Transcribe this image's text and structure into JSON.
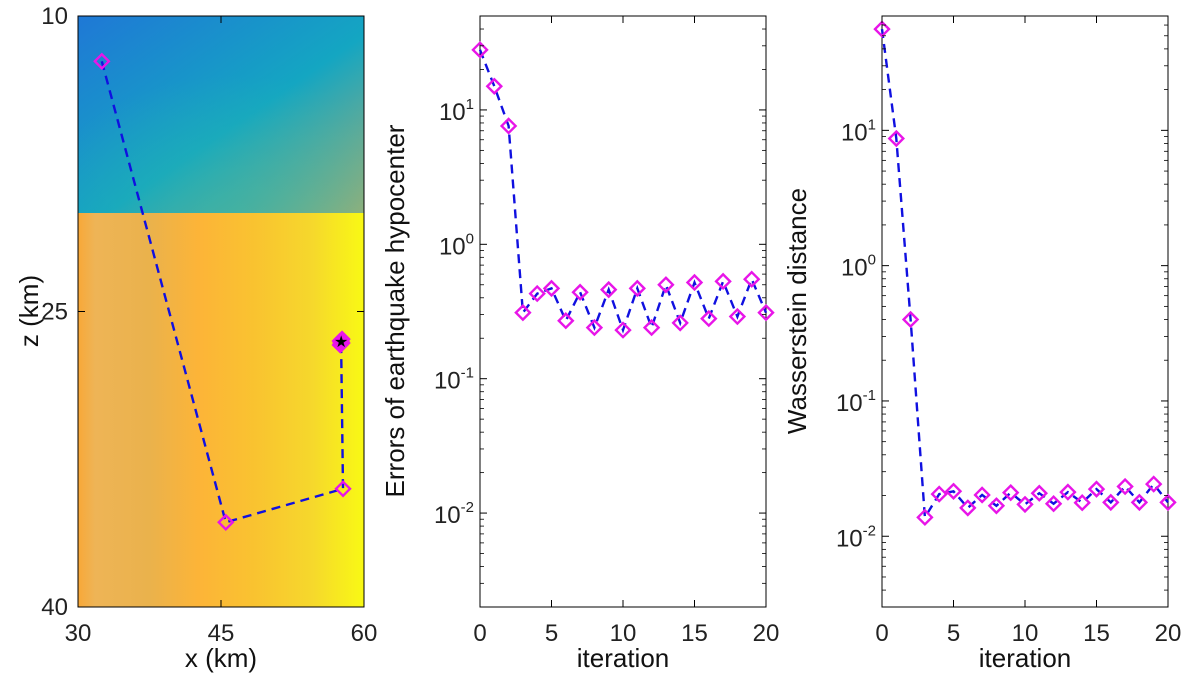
{
  "colors": {
    "line": "#1010e0",
    "marker": "#e815e8",
    "axis": "#000000",
    "final_marker": "#000000"
  },
  "chart_data": [
    {
      "type": "line",
      "xlabel": "x (km)",
      "ylabel": "z (km)",
      "xlim": [
        30,
        60
      ],
      "ylim": [
        10,
        40
      ],
      "y_reversed": true,
      "xticks": [
        "30",
        "45",
        "60"
      ],
      "yticks": [
        "10",
        "25",
        "40"
      ],
      "grid": false,
      "background": {
        "type": "velocity-model",
        "layer_boundary_z": 20,
        "upper_layer": "blue-teal gradient",
        "lower_layer": "orange-yellow gradient"
      },
      "series": [
        {
          "x": [
            32.5,
            45.5,
            57.8,
            57.6,
            57.6,
            57.5,
            57.7,
            57.6,
            57.5,
            57.7,
            57.6,
            57.6
          ],
          "z": [
            12.3,
            35.7,
            34.0,
            26.6,
            26.5,
            26.7,
            26.4,
            26.6,
            26.5,
            26.6,
            26.5,
            26.6
          ],
          "marker": "diamond",
          "linestyle": "dashed"
        }
      ],
      "final_point": {
        "x": 57.6,
        "z": 26.5
      }
    },
    {
      "type": "line",
      "xlabel": "iteration",
      "ylabel": "Errors of earthquake hypocenter",
      "yscale": "log",
      "xlim": [
        0,
        20
      ],
      "ylim": [
        0.002,
        50
      ],
      "xticks": [
        "0",
        "5",
        "10",
        "15",
        "20"
      ],
      "yticks": [
        {
          "base": "10",
          "exp": "1"
        },
        {
          "base": "10",
          "exp": "0"
        },
        {
          "base": "10",
          "exp": "-1"
        },
        {
          "base": "10",
          "exp": "-2"
        }
      ],
      "grid": false,
      "series": [
        {
          "x": [
            0,
            1,
            2,
            3,
            4,
            5,
            6,
            7,
            8,
            9,
            10,
            11,
            12,
            13,
            14,
            15,
            16,
            17,
            18,
            19,
            20
          ],
          "y": [
            28,
            15,
            7.6,
            0.31,
            0.43,
            0.47,
            0.27,
            0.44,
            0.24,
            0.46,
            0.23,
            0.47,
            0.24,
            0.5,
            0.26,
            0.52,
            0.28,
            0.53,
            0.29,
            0.55,
            0.31
          ],
          "marker": "diamond",
          "linestyle": "dashed"
        }
      ]
    },
    {
      "type": "line",
      "xlabel": "iteration",
      "ylabel": "Wasserstein distance",
      "yscale": "log",
      "xlim": [
        0,
        20
      ],
      "ylim": [
        0.003,
        70
      ],
      "xticks": [
        "0",
        "5",
        "10",
        "15",
        "20"
      ],
      "yticks": [
        {
          "base": "10",
          "exp": "1"
        },
        {
          "base": "10",
          "exp": "0"
        },
        {
          "base": "10",
          "exp": "-1"
        },
        {
          "base": "10",
          "exp": "-2"
        }
      ],
      "grid": false,
      "series": [
        {
          "x": [
            0,
            1,
            2,
            3,
            4,
            5,
            6,
            7,
            8,
            9,
            10,
            11,
            12,
            13,
            14,
            15,
            16,
            17,
            18,
            19,
            20
          ],
          "y": [
            56,
            8.7,
            0.4,
            0.0138,
            0.0205,
            0.0215,
            0.0162,
            0.0202,
            0.0168,
            0.021,
            0.0172,
            0.0208,
            0.0174,
            0.0212,
            0.0177,
            0.0223,
            0.0178,
            0.0233,
            0.0178,
            0.0243,
            0.0178
          ],
          "marker": "diamond",
          "linestyle": "dashed"
        }
      ]
    }
  ]
}
